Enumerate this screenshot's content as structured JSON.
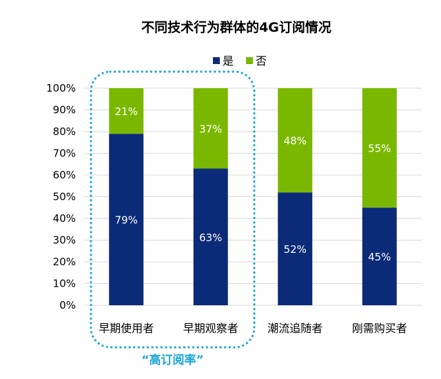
{
  "chart_data": {
    "type": "bar",
    "stacked": true,
    "title": "不同技术行为群体的4G订阅情况",
    "categories": [
      "早期使用者",
      "早期观察者",
      "潮流追随者",
      "刚需购买者"
    ],
    "series": [
      {
        "name": "是",
        "values": [
          79,
          63,
          52,
          45
        ],
        "labels": [
          "79%",
          "63%",
          "52%",
          "45%"
        ],
        "color": "#0b2a77"
      },
      {
        "name": "否",
        "values": [
          21,
          37,
          48,
          55
        ],
        "labels": [
          "21%",
          "37%",
          "48%",
          "55%"
        ],
        "color": "#7ab800"
      }
    ],
    "yticks": [
      "0%",
      "10%",
      "20%",
      "30%",
      "40%",
      "50%",
      "60%",
      "70%",
      "80%",
      "90%",
      "100%"
    ],
    "ylim": [
      0,
      100
    ],
    "grid": true,
    "legend_position": "top",
    "annotation": {
      "text": "“高订阅率”",
      "color": "#1aa7d8",
      "covers_categories": [
        "早期使用者",
        "早期观察者"
      ]
    }
  }
}
